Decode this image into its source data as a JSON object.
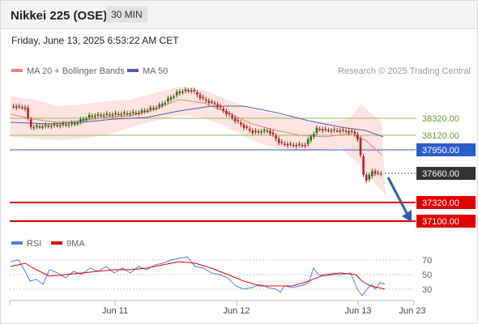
{
  "header": {
    "title": "Nikkei 225 (OSE)",
    "timeframe": "30 MIN"
  },
  "timestamp": "Friday, June 13, 2025 6:53:22 AM CET",
  "legend": {
    "bb_label": "MA 20 + Bollinger Bands",
    "ma50_label": "MA 50",
    "credit": "Research © 2025 Trading Central"
  },
  "rsi_legend": {
    "rsi_label": "RSI",
    "ma_label": "9MA"
  },
  "colors": {
    "candle_up": "#2b6a17",
    "candle_down": "#b52228",
    "ma20": "#e8867a",
    "ma50": "#4e5fa8",
    "support": "#e00000",
    "pivot": "#2c5dc8",
    "resistance": "#8fbd5c",
    "arrow": "#2d5ea6"
  },
  "chart_data": {
    "type": "candlestick",
    "x_labels": [
      "Jun 11",
      "Jun 12",
      "Jun 13",
      "Jun 23"
    ],
    "levels": [
      {
        "value": 38320,
        "label": "38320.00",
        "kind": "resistance"
      },
      {
        "value": 38120,
        "label": "38120.00",
        "kind": "resistance"
      },
      {
        "value": 37950,
        "label": "37950.00",
        "kind": "pivot"
      },
      {
        "value": 37660,
        "label": "37660.00",
        "kind": "last"
      },
      {
        "value": 37320,
        "label": "37320.00",
        "kind": "support"
      },
      {
        "value": 37100,
        "label": "37100.00",
        "kind": "support"
      }
    ],
    "rsi_axis": {
      "ticks": [
        70,
        50,
        30
      ],
      "labels": [
        "70",
        "50",
        "30"
      ]
    },
    "scenario": "bearish arrow from 37660 towards 37100"
  }
}
